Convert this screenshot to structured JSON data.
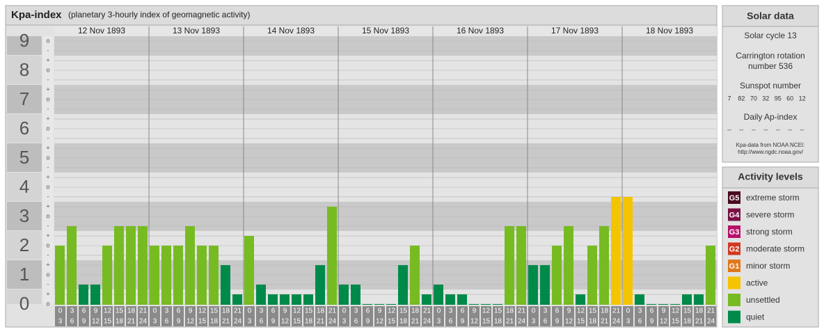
{
  "chart_data": {
    "type": "bar",
    "title": "Kpa-index",
    "subtitle": "(planetary 3-hourly index of geomagnetic activity)",
    "ylim": [
      0,
      9
    ],
    "yticks": [
      0,
      1,
      2,
      3,
      4,
      5,
      6,
      7,
      8,
      9
    ],
    "minor_ticks": [
      {
        "value": 0,
        "label": "o"
      },
      {
        "value": 0.333,
        "label": "+"
      },
      {
        "value": 0.667,
        "label": "-"
      },
      {
        "value": 1,
        "label": "o"
      },
      {
        "value": 1.333,
        "label": "+"
      },
      {
        "value": 1.667,
        "label": "-"
      },
      {
        "value": 2,
        "label": "o"
      },
      {
        "value": 2.333,
        "label": "+"
      },
      {
        "value": 2.667,
        "label": "-"
      },
      {
        "value": 3,
        "label": "o"
      },
      {
        "value": 3.333,
        "label": "+"
      },
      {
        "value": 3.667,
        "label": "-"
      },
      {
        "value": 4,
        "label": "o"
      },
      {
        "value": 4.333,
        "label": "+"
      },
      {
        "value": 4.667,
        "label": "-"
      },
      {
        "value": 5,
        "label": "o"
      },
      {
        "value": 5.333,
        "label": "+"
      },
      {
        "value": 5.667,
        "label": "-"
      },
      {
        "value": 6,
        "label": "o"
      },
      {
        "value": 6.333,
        "label": "+"
      },
      {
        "value": 6.667,
        "label": "-"
      },
      {
        "value": 7,
        "label": "o"
      },
      {
        "value": 7.333,
        "label": "+"
      },
      {
        "value": 7.667,
        "label": "-"
      },
      {
        "value": 8,
        "label": "o"
      },
      {
        "value": 8.333,
        "label": "+"
      },
      {
        "value": 8.667,
        "label": "-"
      },
      {
        "value": 9,
        "label": "o"
      }
    ],
    "slots": [
      [
        "0",
        "3"
      ],
      [
        "3",
        "6"
      ],
      [
        "6",
        "9"
      ],
      [
        "9",
        "12"
      ],
      [
        "12",
        "15"
      ],
      [
        "15",
        "18"
      ],
      [
        "18",
        "21"
      ],
      [
        "21",
        "24"
      ]
    ],
    "days": [
      {
        "label": "12 Nov 1893",
        "values": [
          2,
          2.667,
          0.667,
          0.667,
          2,
          2.667,
          2.667,
          2.667
        ],
        "colors": [
          "#77bb22",
          "#77bb22",
          "#008a4a",
          "#008a4a",
          "#77bb22",
          "#77bb22",
          "#77bb22",
          "#77bb22"
        ]
      },
      {
        "label": "13 Nov 1893",
        "values": [
          2,
          2,
          2,
          2.667,
          2,
          2,
          1.333,
          0.333
        ],
        "colors": [
          "#77bb22",
          "#77bb22",
          "#77bb22",
          "#77bb22",
          "#77bb22",
          "#77bb22",
          "#008a4a",
          "#008a4a"
        ]
      },
      {
        "label": "14 Nov 1893",
        "values": [
          2.333,
          0.667,
          0.333,
          0.333,
          0.333,
          0.333,
          1.333,
          3.333
        ],
        "colors": [
          "#77bb22",
          "#008a4a",
          "#008a4a",
          "#008a4a",
          "#008a4a",
          "#008a4a",
          "#008a4a",
          "#77bb22"
        ]
      },
      {
        "label": "15 Nov 1893",
        "values": [
          0.667,
          0.667,
          0,
          0,
          0,
          1.333,
          2,
          0.333
        ],
        "colors": [
          "#008a4a",
          "#008a4a",
          "#008a4a",
          "#008a4a",
          "#008a4a",
          "#008a4a",
          "#77bb22",
          "#008a4a"
        ]
      },
      {
        "label": "16 Nov 1893",
        "values": [
          0.667,
          0.333,
          0.333,
          0,
          0,
          0,
          2.667,
          2.667
        ],
        "colors": [
          "#008a4a",
          "#008a4a",
          "#008a4a",
          "#008a4a",
          "#008a4a",
          "#008a4a",
          "#77bb22",
          "#77bb22"
        ]
      },
      {
        "label": "17 Nov 1893",
        "values": [
          1.333,
          1.333,
          2,
          2.667,
          0.333,
          2,
          2.667,
          3.667
        ],
        "colors": [
          "#008a4a",
          "#008a4a",
          "#77bb22",
          "#77bb22",
          "#008a4a",
          "#77bb22",
          "#77bb22",
          "#f5c400"
        ]
      },
      {
        "label": "18 Nov 1893",
        "values": [
          3.667,
          0.333,
          0,
          0,
          0,
          0.333,
          0.333,
          2
        ],
        "colors": [
          "#f5c400",
          "#008a4a",
          "#008a4a",
          "#008a4a",
          "#008a4a",
          "#008a4a",
          "#008a4a",
          "#77bb22"
        ]
      }
    ]
  },
  "solar": {
    "title": "Solar data",
    "cycle": "Solar cycle 13",
    "rotation": [
      "Carrington rotation",
      "number 536"
    ],
    "sunspot_title": "Sunspot number",
    "sunspots": [
      "7",
      "82",
      "70",
      "32",
      "95",
      "60",
      "12"
    ],
    "ap_title": "Daily Ap-index",
    "ap": [
      "--",
      "--",
      "--",
      "--",
      "--",
      "--",
      "--"
    ],
    "source": [
      "Kpa-data from NOAA NCEI:",
      "http://www.ngdc.noaa.gov/"
    ]
  },
  "legend": {
    "title": "Activity levels",
    "items": [
      {
        "badge": "G5",
        "label": "extreme storm",
        "color": "#4b0a22"
      },
      {
        "badge": "G4",
        "label": "severe storm",
        "color": "#7a1045"
      },
      {
        "badge": "G3",
        "label": "strong storm",
        "color": "#b8106a"
      },
      {
        "badge": "G2",
        "label": "moderate storm",
        "color": "#d03a20"
      },
      {
        "badge": "G1",
        "label": "minor storm",
        "color": "#e0781a"
      },
      {
        "label": "active",
        "color": "#f5c400"
      },
      {
        "label": "unsettled",
        "color": "#77bb22"
      },
      {
        "label": "quiet",
        "color": "#008a4a"
      }
    ]
  }
}
